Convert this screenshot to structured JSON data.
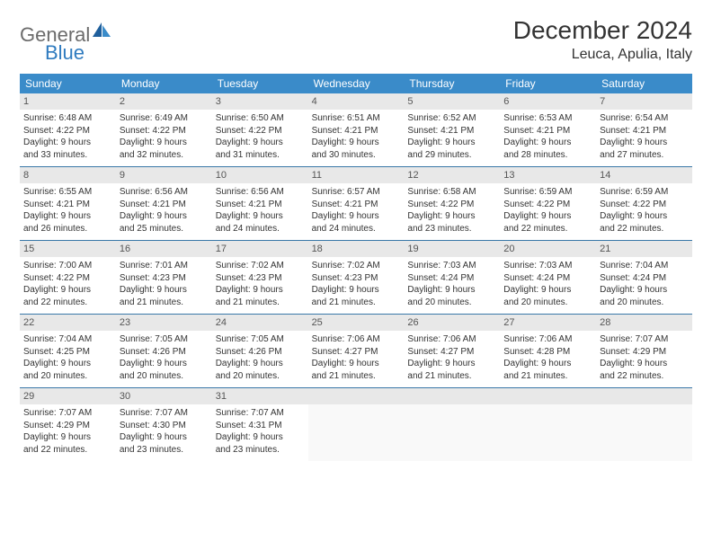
{
  "logo": {
    "text1": "General",
    "text2": "Blue"
  },
  "title": "December 2024",
  "location": "Leuca, Apulia, Italy",
  "weekdays": [
    "Sunday",
    "Monday",
    "Tuesday",
    "Wednesday",
    "Thursday",
    "Friday",
    "Saturday"
  ],
  "colors": {
    "header_bg": "#3a8bc9",
    "header_text": "#ffffff",
    "daynum_bg": "#e8e8e8",
    "row_border": "#3a78a8",
    "logo_gray": "#6b6b6b",
    "logo_blue": "#2f7bbf"
  },
  "weeks": [
    [
      {
        "n": "1",
        "sr": "Sunrise: 6:48 AM",
        "ss": "Sunset: 4:22 PM",
        "d1": "Daylight: 9 hours",
        "d2": "and 33 minutes."
      },
      {
        "n": "2",
        "sr": "Sunrise: 6:49 AM",
        "ss": "Sunset: 4:22 PM",
        "d1": "Daylight: 9 hours",
        "d2": "and 32 minutes."
      },
      {
        "n": "3",
        "sr": "Sunrise: 6:50 AM",
        "ss": "Sunset: 4:22 PM",
        "d1": "Daylight: 9 hours",
        "d2": "and 31 minutes."
      },
      {
        "n": "4",
        "sr": "Sunrise: 6:51 AM",
        "ss": "Sunset: 4:21 PM",
        "d1": "Daylight: 9 hours",
        "d2": "and 30 minutes."
      },
      {
        "n": "5",
        "sr": "Sunrise: 6:52 AM",
        "ss": "Sunset: 4:21 PM",
        "d1": "Daylight: 9 hours",
        "d2": "and 29 minutes."
      },
      {
        "n": "6",
        "sr": "Sunrise: 6:53 AM",
        "ss": "Sunset: 4:21 PM",
        "d1": "Daylight: 9 hours",
        "d2": "and 28 minutes."
      },
      {
        "n": "7",
        "sr": "Sunrise: 6:54 AM",
        "ss": "Sunset: 4:21 PM",
        "d1": "Daylight: 9 hours",
        "d2": "and 27 minutes."
      }
    ],
    [
      {
        "n": "8",
        "sr": "Sunrise: 6:55 AM",
        "ss": "Sunset: 4:21 PM",
        "d1": "Daylight: 9 hours",
        "d2": "and 26 minutes."
      },
      {
        "n": "9",
        "sr": "Sunrise: 6:56 AM",
        "ss": "Sunset: 4:21 PM",
        "d1": "Daylight: 9 hours",
        "d2": "and 25 minutes."
      },
      {
        "n": "10",
        "sr": "Sunrise: 6:56 AM",
        "ss": "Sunset: 4:21 PM",
        "d1": "Daylight: 9 hours",
        "d2": "and 24 minutes."
      },
      {
        "n": "11",
        "sr": "Sunrise: 6:57 AM",
        "ss": "Sunset: 4:21 PM",
        "d1": "Daylight: 9 hours",
        "d2": "and 24 minutes."
      },
      {
        "n": "12",
        "sr": "Sunrise: 6:58 AM",
        "ss": "Sunset: 4:22 PM",
        "d1": "Daylight: 9 hours",
        "d2": "and 23 minutes."
      },
      {
        "n": "13",
        "sr": "Sunrise: 6:59 AM",
        "ss": "Sunset: 4:22 PM",
        "d1": "Daylight: 9 hours",
        "d2": "and 22 minutes."
      },
      {
        "n": "14",
        "sr": "Sunrise: 6:59 AM",
        "ss": "Sunset: 4:22 PM",
        "d1": "Daylight: 9 hours",
        "d2": "and 22 minutes."
      }
    ],
    [
      {
        "n": "15",
        "sr": "Sunrise: 7:00 AM",
        "ss": "Sunset: 4:22 PM",
        "d1": "Daylight: 9 hours",
        "d2": "and 22 minutes."
      },
      {
        "n": "16",
        "sr": "Sunrise: 7:01 AM",
        "ss": "Sunset: 4:23 PM",
        "d1": "Daylight: 9 hours",
        "d2": "and 21 minutes."
      },
      {
        "n": "17",
        "sr": "Sunrise: 7:02 AM",
        "ss": "Sunset: 4:23 PM",
        "d1": "Daylight: 9 hours",
        "d2": "and 21 minutes."
      },
      {
        "n": "18",
        "sr": "Sunrise: 7:02 AM",
        "ss": "Sunset: 4:23 PM",
        "d1": "Daylight: 9 hours",
        "d2": "and 21 minutes."
      },
      {
        "n": "19",
        "sr": "Sunrise: 7:03 AM",
        "ss": "Sunset: 4:24 PM",
        "d1": "Daylight: 9 hours",
        "d2": "and 20 minutes."
      },
      {
        "n": "20",
        "sr": "Sunrise: 7:03 AM",
        "ss": "Sunset: 4:24 PM",
        "d1": "Daylight: 9 hours",
        "d2": "and 20 minutes."
      },
      {
        "n": "21",
        "sr": "Sunrise: 7:04 AM",
        "ss": "Sunset: 4:24 PM",
        "d1": "Daylight: 9 hours",
        "d2": "and 20 minutes."
      }
    ],
    [
      {
        "n": "22",
        "sr": "Sunrise: 7:04 AM",
        "ss": "Sunset: 4:25 PM",
        "d1": "Daylight: 9 hours",
        "d2": "and 20 minutes."
      },
      {
        "n": "23",
        "sr": "Sunrise: 7:05 AM",
        "ss": "Sunset: 4:26 PM",
        "d1": "Daylight: 9 hours",
        "d2": "and 20 minutes."
      },
      {
        "n": "24",
        "sr": "Sunrise: 7:05 AM",
        "ss": "Sunset: 4:26 PM",
        "d1": "Daylight: 9 hours",
        "d2": "and 20 minutes."
      },
      {
        "n": "25",
        "sr": "Sunrise: 7:06 AM",
        "ss": "Sunset: 4:27 PM",
        "d1": "Daylight: 9 hours",
        "d2": "and 21 minutes."
      },
      {
        "n": "26",
        "sr": "Sunrise: 7:06 AM",
        "ss": "Sunset: 4:27 PM",
        "d1": "Daylight: 9 hours",
        "d2": "and 21 minutes."
      },
      {
        "n": "27",
        "sr": "Sunrise: 7:06 AM",
        "ss": "Sunset: 4:28 PM",
        "d1": "Daylight: 9 hours",
        "d2": "and 21 minutes."
      },
      {
        "n": "28",
        "sr": "Sunrise: 7:07 AM",
        "ss": "Sunset: 4:29 PM",
        "d1": "Daylight: 9 hours",
        "d2": "and 22 minutes."
      }
    ],
    [
      {
        "n": "29",
        "sr": "Sunrise: 7:07 AM",
        "ss": "Sunset: 4:29 PM",
        "d1": "Daylight: 9 hours",
        "d2": "and 22 minutes."
      },
      {
        "n": "30",
        "sr": "Sunrise: 7:07 AM",
        "ss": "Sunset: 4:30 PM",
        "d1": "Daylight: 9 hours",
        "d2": "and 23 minutes."
      },
      {
        "n": "31",
        "sr": "Sunrise: 7:07 AM",
        "ss": "Sunset: 4:31 PM",
        "d1": "Daylight: 9 hours",
        "d2": "and 23 minutes."
      },
      null,
      null,
      null,
      null
    ]
  ]
}
